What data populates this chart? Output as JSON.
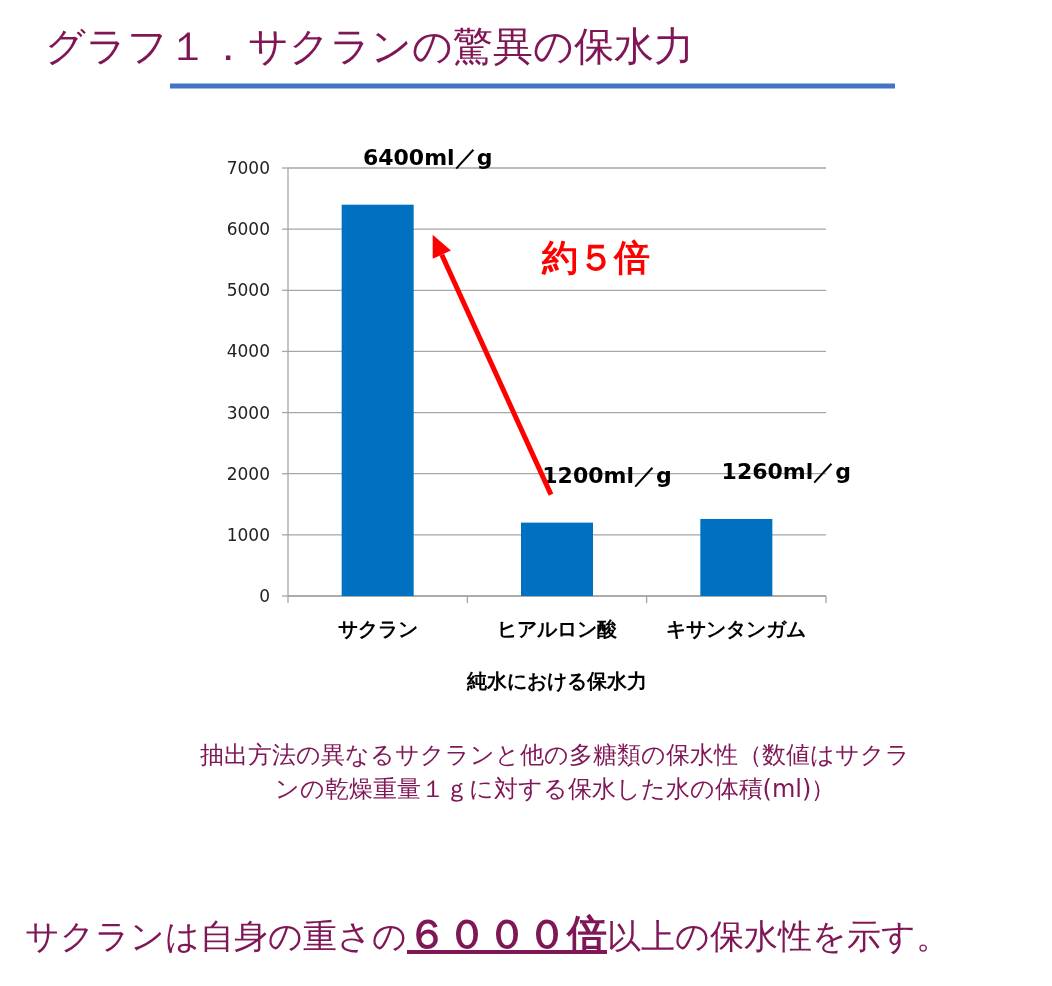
{
  "chart_data": {
    "type": "bar",
    "title": "グラフ１．サクランの驚異の保水力",
    "categories": [
      "サクラン",
      "ヒアルロン酸",
      "キサンタンガム"
    ],
    "values": [
      6400,
      1200,
      1260
    ],
    "value_labels": [
      "6400ml／g",
      "1200ml／g",
      "1260ml／g"
    ],
    "color": "#0070c0",
    "xlabel": "純水における保水力",
    "ylim": [
      0,
      7000
    ],
    "yticks": [
      0,
      1000,
      2000,
      3000,
      4000,
      5000,
      6000,
      7000
    ],
    "grid": "y",
    "annotations": [
      "約５倍",
      "抽出方法の異なるサクランと他の多糖類の保水性（数値はサクランの乾燥重量１ｇに対する保水した水の体積(ml)）",
      "サクランは自身の重さの**６０００倍**以上の保水性を示す。"
    ]
  }
}
